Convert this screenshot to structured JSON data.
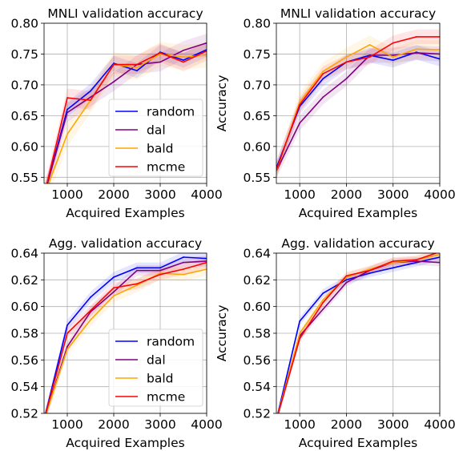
{
  "legend_labels": [
    "random",
    "dal",
    "bald",
    "mcme"
  ],
  "colors": {
    "random": "#0000ff",
    "dal": "#800080",
    "bald": "#ffa500",
    "mcme": "#ff0000"
  },
  "chart_data": [
    {
      "type": "line",
      "title": "MNLI validation accuracy",
      "xlabel": "Acquired Examples",
      "ylabel": "",
      "xlim": [
        500,
        4000
      ],
      "ylim": [
        0.54,
        0.8
      ],
      "xticks": [
        1000,
        2000,
        3000,
        4000
      ],
      "xtick_labels": [
        "1000",
        "2000",
        "3000",
        "4000"
      ],
      "yticks": [
        0.55,
        0.6,
        0.65,
        0.7,
        0.75,
        0.8
      ],
      "ytick_labels": [
        "0.55",
        "0.60",
        "0.65",
        "0.70",
        "0.75",
        "0.80"
      ],
      "grid": true,
      "legend": "lower-right",
      "x": [
        500,
        1000,
        1500,
        2000,
        2500,
        3000,
        3500,
        4000
      ],
      "series": [
        {
          "name": "random",
          "values": [
            0.52,
            0.66,
            0.69,
            0.735,
            0.723,
            0.753,
            0.74,
            0.757
          ],
          "band": 0.012
        },
        {
          "name": "dal",
          "values": [
            0.52,
            0.655,
            0.68,
            0.705,
            0.733,
            0.737,
            0.756,
            0.768
          ],
          "band": 0.015
        },
        {
          "name": "bald",
          "values": [
            0.52,
            0.62,
            0.675,
            0.733,
            0.728,
            0.75,
            0.745,
            0.748
          ],
          "band": 0.02
        },
        {
          "name": "mcme",
          "values": [
            0.52,
            0.679,
            0.675,
            0.733,
            0.733,
            0.752,
            0.737,
            0.755
          ],
          "band": 0.015
        }
      ]
    },
    {
      "type": "line",
      "title": "MNLI validation accuracy",
      "xlabel": "Acquired Examples",
      "ylabel": "Accuracy",
      "xlim": [
        500,
        4000
      ],
      "ylim": [
        0.54,
        0.8
      ],
      "xticks": [
        1000,
        2000,
        3000,
        4000
      ],
      "xtick_labels": [
        "1000",
        "2000",
        "3000",
        "4000"
      ],
      "yticks": [
        0.55,
        0.6,
        0.65,
        0.7,
        0.75,
        0.8
      ],
      "ytick_labels": [
        "0.55",
        "0.60",
        "0.65",
        "0.70",
        "0.75",
        "0.80"
      ],
      "grid": true,
      "legend": "",
      "x": [
        500,
        1000,
        1500,
        2000,
        2500,
        3000,
        3500,
        4000
      ],
      "series": [
        {
          "name": "random",
          "values": [
            0.565,
            0.665,
            0.71,
            0.737,
            0.748,
            0.74,
            0.753,
            0.742
          ],
          "band": 0.012
        },
        {
          "name": "dal",
          "values": [
            0.56,
            0.638,
            0.68,
            0.71,
            0.748,
            0.748,
            0.752,
            0.75
          ],
          "band": 0.012
        },
        {
          "name": "bald",
          "values": [
            0.56,
            0.672,
            0.722,
            0.745,
            0.765,
            0.745,
            0.758,
            0.757
          ],
          "band": 0.015
        },
        {
          "name": "mcme",
          "values": [
            0.562,
            0.668,
            0.718,
            0.737,
            0.745,
            0.768,
            0.778,
            0.778
          ],
          "band": 0.012
        }
      ]
    },
    {
      "type": "line",
      "title": "Agg. validation accuracy",
      "xlabel": "Acquired Examples",
      "ylabel": "",
      "xlim": [
        500,
        4000
      ],
      "ylim": [
        0.52,
        0.64
      ],
      "xticks": [
        1000,
        2000,
        3000,
        4000
      ],
      "xtick_labels": [
        "1000",
        "2000",
        "3000",
        "4000"
      ],
      "yticks": [
        0.52,
        0.54,
        0.56,
        0.58,
        0.6,
        0.62,
        0.64
      ],
      "ytick_labels": [
        "0.52",
        "0.54",
        "0.56",
        "0.58",
        "0.60",
        "0.62",
        "0.64"
      ],
      "grid": true,
      "legend": "lower-right",
      "x": [
        500,
        1000,
        1500,
        2000,
        2500,
        3000,
        3500,
        4000
      ],
      "series": [
        {
          "name": "random",
          "values": [
            0.515,
            0.586,
            0.607,
            0.622,
            0.629,
            0.629,
            0.637,
            0.636
          ],
          "band": 0.004
        },
        {
          "name": "dal",
          "values": [
            0.515,
            0.57,
            0.596,
            0.611,
            0.627,
            0.627,
            0.633,
            0.634
          ],
          "band": 0.004
        },
        {
          "name": "bald",
          "values": [
            0.515,
            0.568,
            0.59,
            0.608,
            0.616,
            0.625,
            0.624,
            0.628
          ],
          "band": 0.005
        },
        {
          "name": "mcme",
          "values": [
            0.515,
            0.58,
            0.597,
            0.614,
            0.617,
            0.624,
            0.628,
            0.633
          ],
          "band": 0.004
        }
      ]
    },
    {
      "type": "line",
      "title": "Agg. validation accuracy",
      "xlabel": "Acquired Examples",
      "ylabel": "Accuracy",
      "xlim": [
        500,
        4000
      ],
      "ylim": [
        0.52,
        0.64
      ],
      "xticks": [
        1000,
        2000,
        3000,
        4000
      ],
      "xtick_labels": [
        "1000",
        "2000",
        "3000",
        "4000"
      ],
      "yticks": [
        0.52,
        0.54,
        0.56,
        0.58,
        0.6,
        0.62,
        0.64
      ],
      "ytick_labels": [
        "0.52",
        "0.54",
        "0.56",
        "0.58",
        "0.60",
        "0.62",
        "0.64"
      ],
      "grid": true,
      "legend": "",
      "x": [
        500,
        1000,
        1500,
        2000,
        2500,
        3000,
        3500,
        4000
      ],
      "series": [
        {
          "name": "random",
          "values": [
            0.515,
            0.589,
            0.61,
            0.62,
            0.625,
            0.629,
            0.633,
            0.637
          ],
          "band": 0.003
        },
        {
          "name": "dal",
          "values": [
            0.515,
            0.578,
            0.598,
            0.618,
            0.627,
            0.633,
            0.634,
            0.633
          ],
          "band": 0.003
        },
        {
          "name": "bald",
          "values": [
            0.515,
            0.58,
            0.605,
            0.622,
            0.628,
            0.633,
            0.635,
            0.639
          ],
          "band": 0.003
        },
        {
          "name": "mcme",
          "values": [
            0.515,
            0.576,
            0.603,
            0.623,
            0.627,
            0.634,
            0.635,
            0.641
          ],
          "band": 0.003
        }
      ]
    }
  ]
}
